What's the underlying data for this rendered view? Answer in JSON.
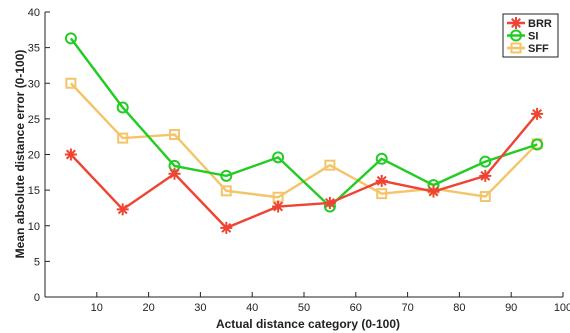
{
  "chart_data": {
    "type": "line",
    "title": "",
    "xlabel": "Actual distance category (0-100)",
    "ylabel": "Mean absolute distance error (0-100)",
    "xlim": [
      0,
      100
    ],
    "ylim": [
      0,
      40
    ],
    "xticks": [
      10,
      20,
      30,
      40,
      50,
      60,
      70,
      80,
      90,
      100
    ],
    "yticks": [
      0,
      5,
      10,
      15,
      20,
      25,
      30,
      35,
      40
    ],
    "grid": false,
    "legend_position": "top-right",
    "x": [
      5,
      15,
      25,
      35,
      45,
      55,
      65,
      75,
      85,
      95
    ],
    "series": [
      {
        "name": "BRR",
        "color": "#ee4433",
        "marker": "asterisk",
        "values": [
          20.0,
          12.3,
          17.3,
          9.7,
          12.7,
          13.2,
          16.3,
          14.8,
          17.0,
          25.7
        ]
      },
      {
        "name": "SI",
        "color": "#22cc22",
        "marker": "circle",
        "values": [
          36.3,
          26.6,
          18.4,
          17.0,
          19.6,
          12.7,
          19.4,
          15.7,
          19.0,
          21.4
        ]
      },
      {
        "name": "SFF",
        "color": "#f4c46a",
        "marker": "square",
        "values": [
          30.0,
          22.3,
          22.8,
          14.9,
          14.0,
          18.5,
          14.5,
          15.2,
          14.1,
          21.5
        ]
      }
    ]
  }
}
